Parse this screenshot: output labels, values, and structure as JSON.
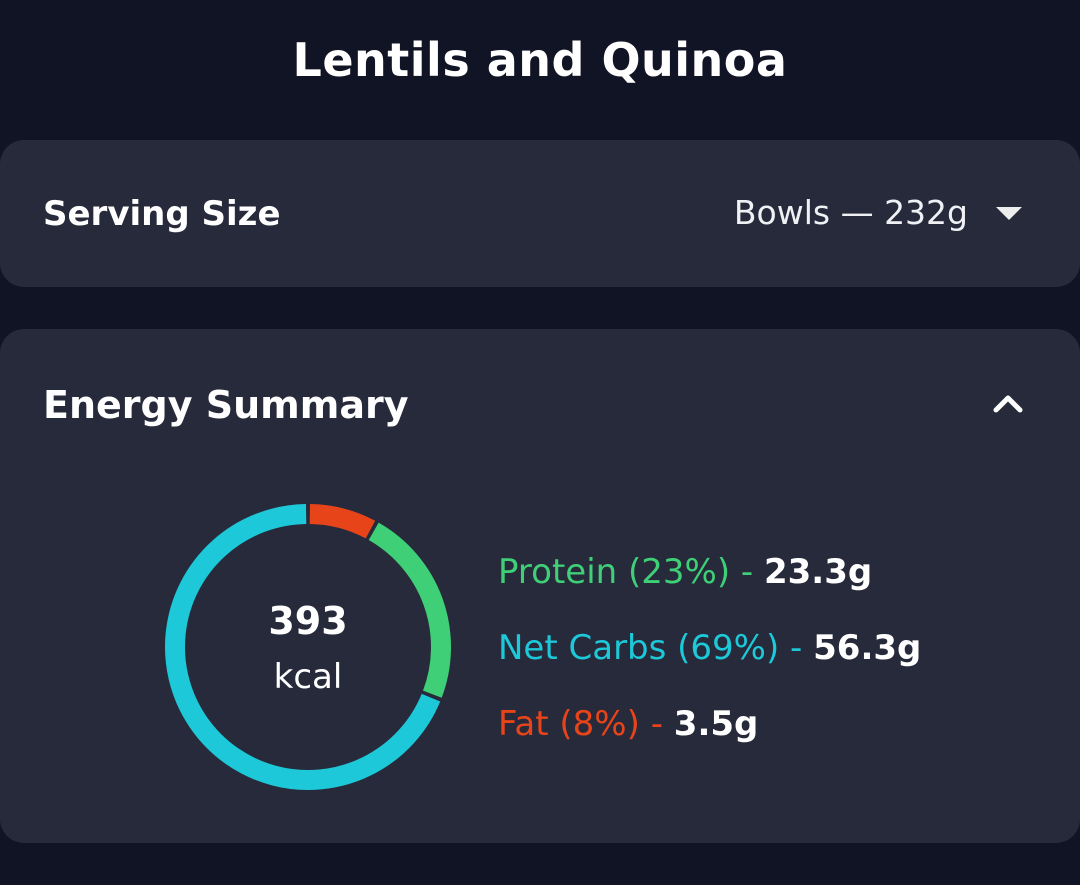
{
  "header": {
    "title": "Lentils and Quinoa"
  },
  "serving": {
    "label": "Serving Size",
    "value": "Bowls  — 232g",
    "dropdown_icon": "caret-down-icon"
  },
  "energy": {
    "title": "Energy Summary",
    "collapse_icon": "chevron-up-icon",
    "kcal_value": "393",
    "kcal_unit": "kcal",
    "macros": [
      {
        "label": "Protein (23%)",
        "dash": " - ",
        "amount": "23.3g",
        "color": "#3ecf77",
        "fraction": 0.23
      },
      {
        "label": "Net Carbs (69%)",
        "dash": " - ",
        "amount": "56.3g",
        "color": "#1dc8d8",
        "fraction": 0.69
      },
      {
        "label": "Fat (8%)",
        "dash": " - ",
        "amount": "3.5g",
        "color": "#e84419",
        "fraction": 0.08
      }
    ]
  },
  "colors": {
    "background": "#111425",
    "card": "#262a3a",
    "protein": "#3ecf77",
    "net_carbs": "#1dc8d8",
    "fat": "#e84419"
  }
}
